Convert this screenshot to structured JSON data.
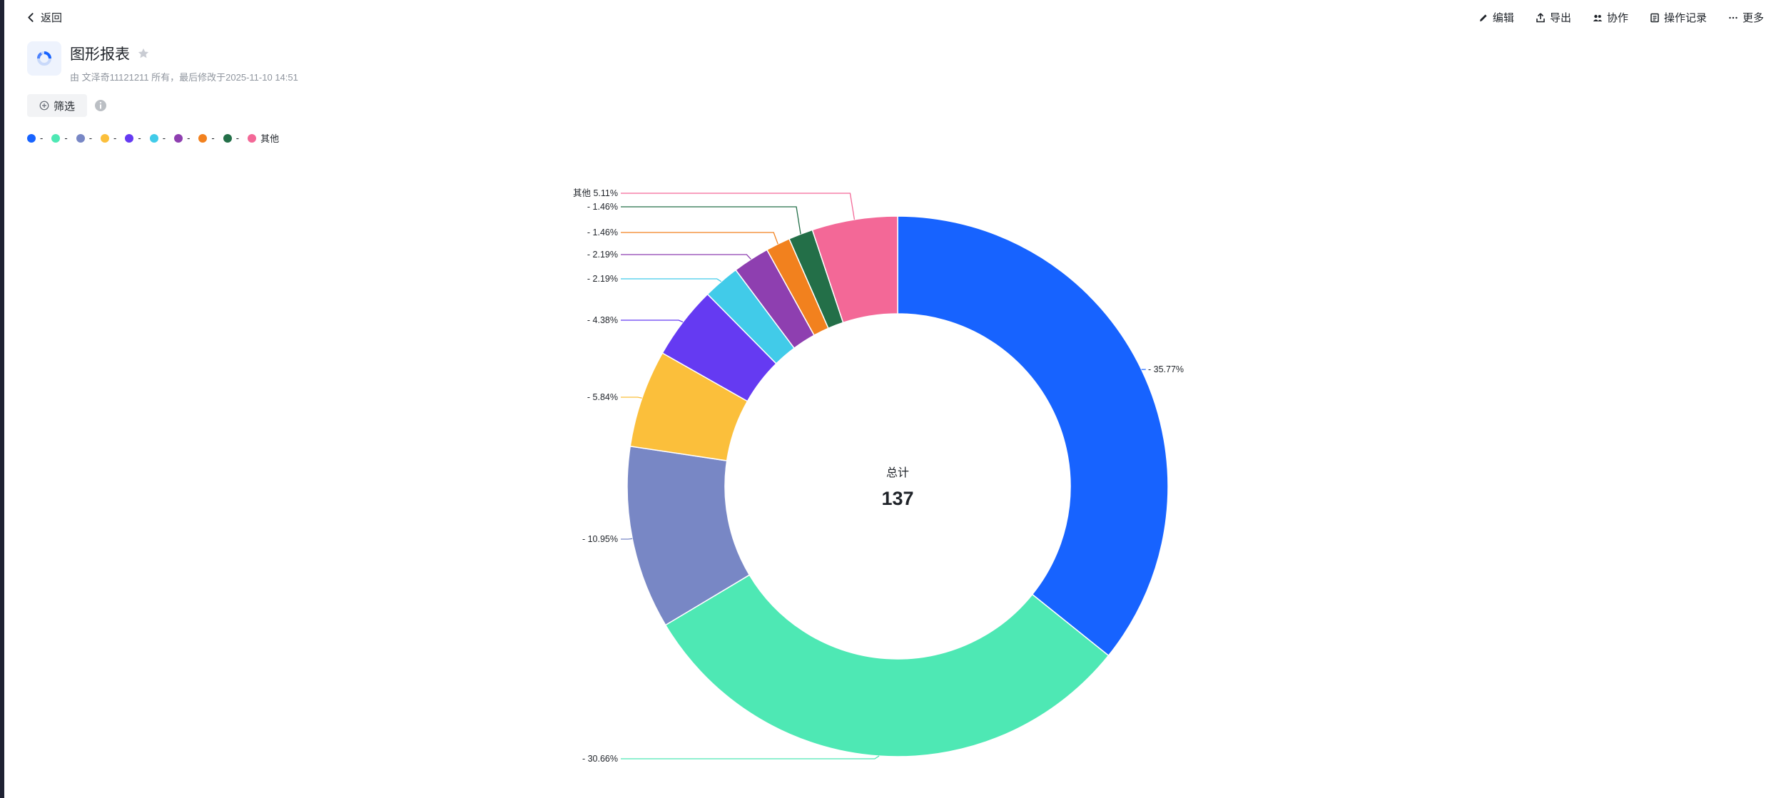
{
  "nav": {
    "back_label": "返回"
  },
  "actions": [
    {
      "label": "编辑",
      "icon": "edit-icon"
    },
    {
      "label": "导出",
      "icon": "export-icon"
    },
    {
      "label": "协作",
      "icon": "collaborate-icon"
    },
    {
      "label": "操作记录",
      "icon": "history-icon"
    },
    {
      "label": "更多",
      "icon": "more-icon"
    }
  ],
  "report": {
    "title": "图形报表",
    "subtitle": "由 文泽奇11121211 所有，最后修改于2025-11-10 14:51"
  },
  "filter": {
    "label": "筛选"
  },
  "chart_data": {
    "type": "pie",
    "donut": true,
    "center_label": "总计",
    "total": "137",
    "legend_position": "top-left",
    "slices": [
      {
        "name": "-",
        "label": "- 35.77%",
        "value": 49,
        "percent": 35.77,
        "color": "#1763ff"
      },
      {
        "name": "-",
        "label": "- 30.66%",
        "value": 42,
        "percent": 30.66,
        "color": "#4ee8b4"
      },
      {
        "name": "-",
        "label": "- 10.95%",
        "value": 15,
        "percent": 10.95,
        "color": "#7887c5"
      },
      {
        "name": "-",
        "label": "- 5.84%",
        "value": 8,
        "percent": 5.84,
        "color": "#fbbf3b"
      },
      {
        "name": "-",
        "label": "- 4.38%",
        "value": 6,
        "percent": 4.38,
        "color": "#653af2"
      },
      {
        "name": "-",
        "label": "- 2.19%",
        "value": 3,
        "percent": 2.19,
        "color": "#41cbe9"
      },
      {
        "name": "-",
        "label": "- 2.19%",
        "value": 3,
        "percent": 2.19,
        "color": "#8e3fb0"
      },
      {
        "name": "-",
        "label": "- 1.46%",
        "value": 2,
        "percent": 1.46,
        "color": "#f2811e"
      },
      {
        "name": "-",
        "label": "- 1.46%",
        "value": 2,
        "percent": 1.46,
        "color": "#236f48"
      },
      {
        "name": "其他",
        "label": "其他 5.11%",
        "value": 7,
        "percent": 5.11,
        "color": "#f36897"
      }
    ]
  }
}
